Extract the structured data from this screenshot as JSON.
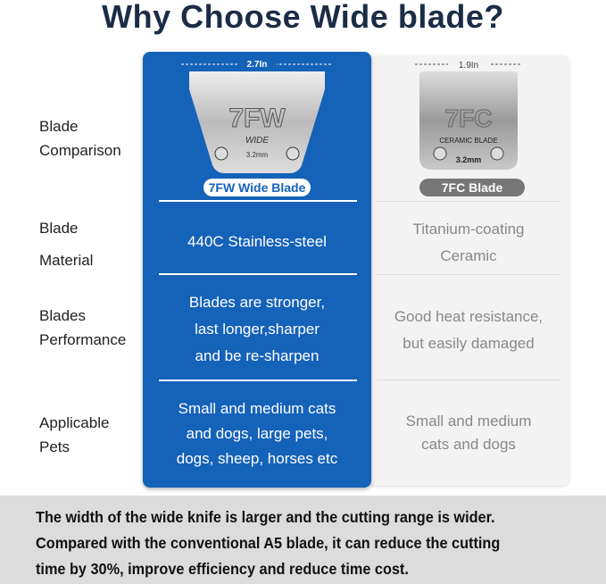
{
  "title": "Why Choose Wide blade?",
  "labels": {
    "comparison": [
      "Blade",
      "Comparison"
    ],
    "material": [
      "Blade",
      "Material"
    ],
    "performance": [
      "Blades",
      "Performance"
    ],
    "pets": [
      "Applicable",
      "Pets"
    ]
  },
  "wide": {
    "width": "2.7In",
    "model": "7FW",
    "sub": "WIDE",
    "size": "3.2mm",
    "name": "7FW Wide Blade",
    "material": "440C Stainless-steel",
    "performance": [
      "Blades are stronger,",
      "last longer,sharper",
      "and be re-sharpen"
    ],
    "pets": [
      "Small and medium cats",
      "and dogs, large pets,",
      "dogs, sheep, horses etc"
    ]
  },
  "ceramic": {
    "width": "1.9In",
    "model": "7FC",
    "sub": "CERAMIC BLADE",
    "size": "3.2mm",
    "name": "7FC Blade",
    "material": [
      "Titanium-coating",
      "Ceramic"
    ],
    "performance": [
      "Good heat resistance,",
      "but easily damaged"
    ],
    "pets": [
      "Small and medium",
      "cats and dogs"
    ]
  },
  "footer": [
    "The width of the wide knife is larger and the cutting range is wider.",
    "Compared with the conventional A5 blade, it can reduce the cutting",
    "time by 30%, improve efficiency and reduce time cost."
  ],
  "colors": {
    "blue": "#1562b9",
    "title": "#1b2c47",
    "footer_bg": "#dcdcdc"
  }
}
